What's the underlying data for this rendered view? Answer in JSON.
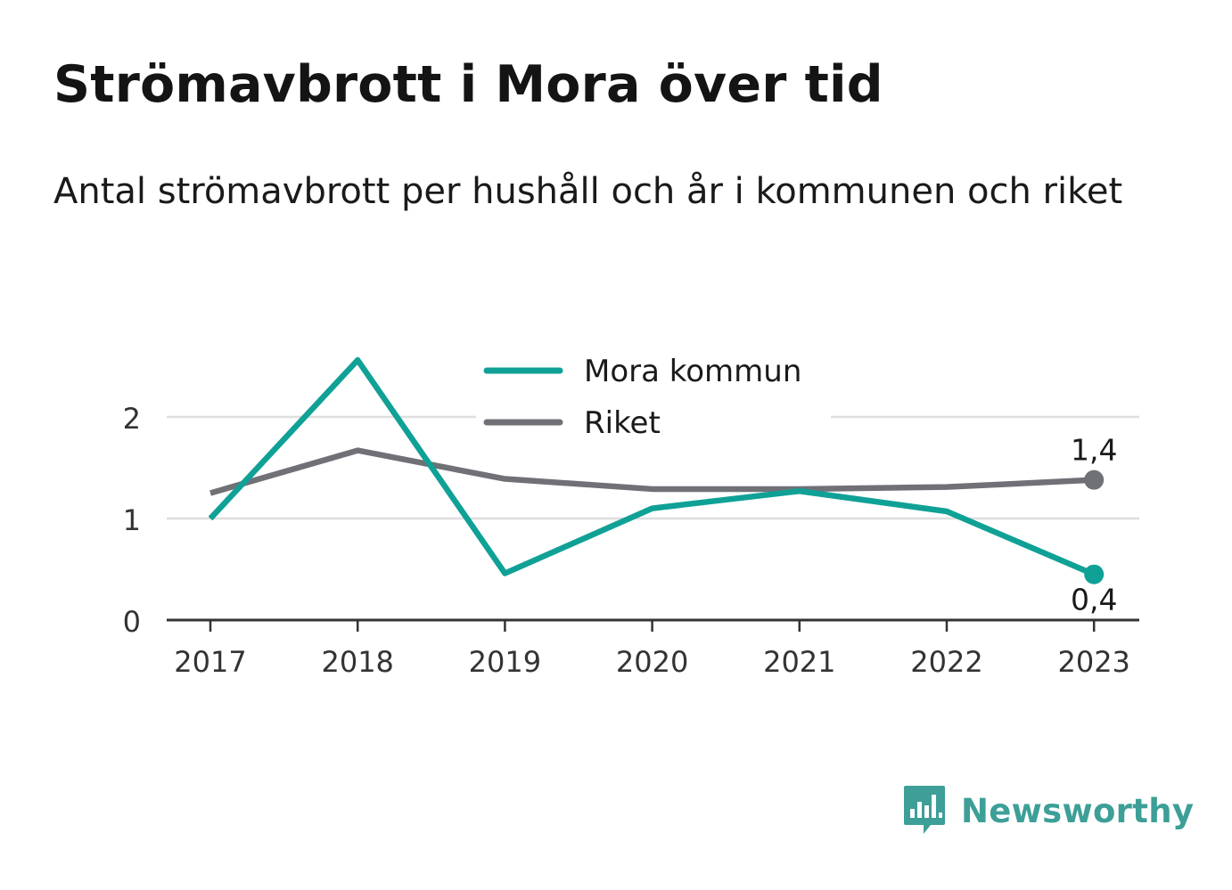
{
  "title": "Strömavbrott i Mora över tid",
  "subtitle": "Antal strömavbrott per hushåll och år i kommunen och riket",
  "brand": {
    "name": "Newsworthy",
    "icon": "bar-chart-speech-bubble-icon",
    "color": "#3d9f97"
  },
  "chart_data": {
    "type": "line",
    "x": [
      "2017",
      "2018",
      "2019",
      "2020",
      "2021",
      "2022",
      "2023"
    ],
    "ylim": [
      0,
      2.5
    ],
    "yticks": [
      "0",
      "1",
      "2"
    ],
    "ytick_values": [
      0,
      1,
      2
    ],
    "grid": true,
    "legend": "top-center",
    "series": [
      {
        "name": "Mora kommun",
        "color": "#10a196",
        "values": [
          1.0,
          2.56,
          0.46,
          1.1,
          1.27,
          1.07,
          0.45
        ],
        "end_label": "0,4"
      },
      {
        "name": "Riket",
        "color": "#707077",
        "values": [
          1.25,
          1.67,
          1.39,
          1.29,
          1.29,
          1.31,
          1.38
        ],
        "end_label": "1,4"
      }
    ]
  }
}
